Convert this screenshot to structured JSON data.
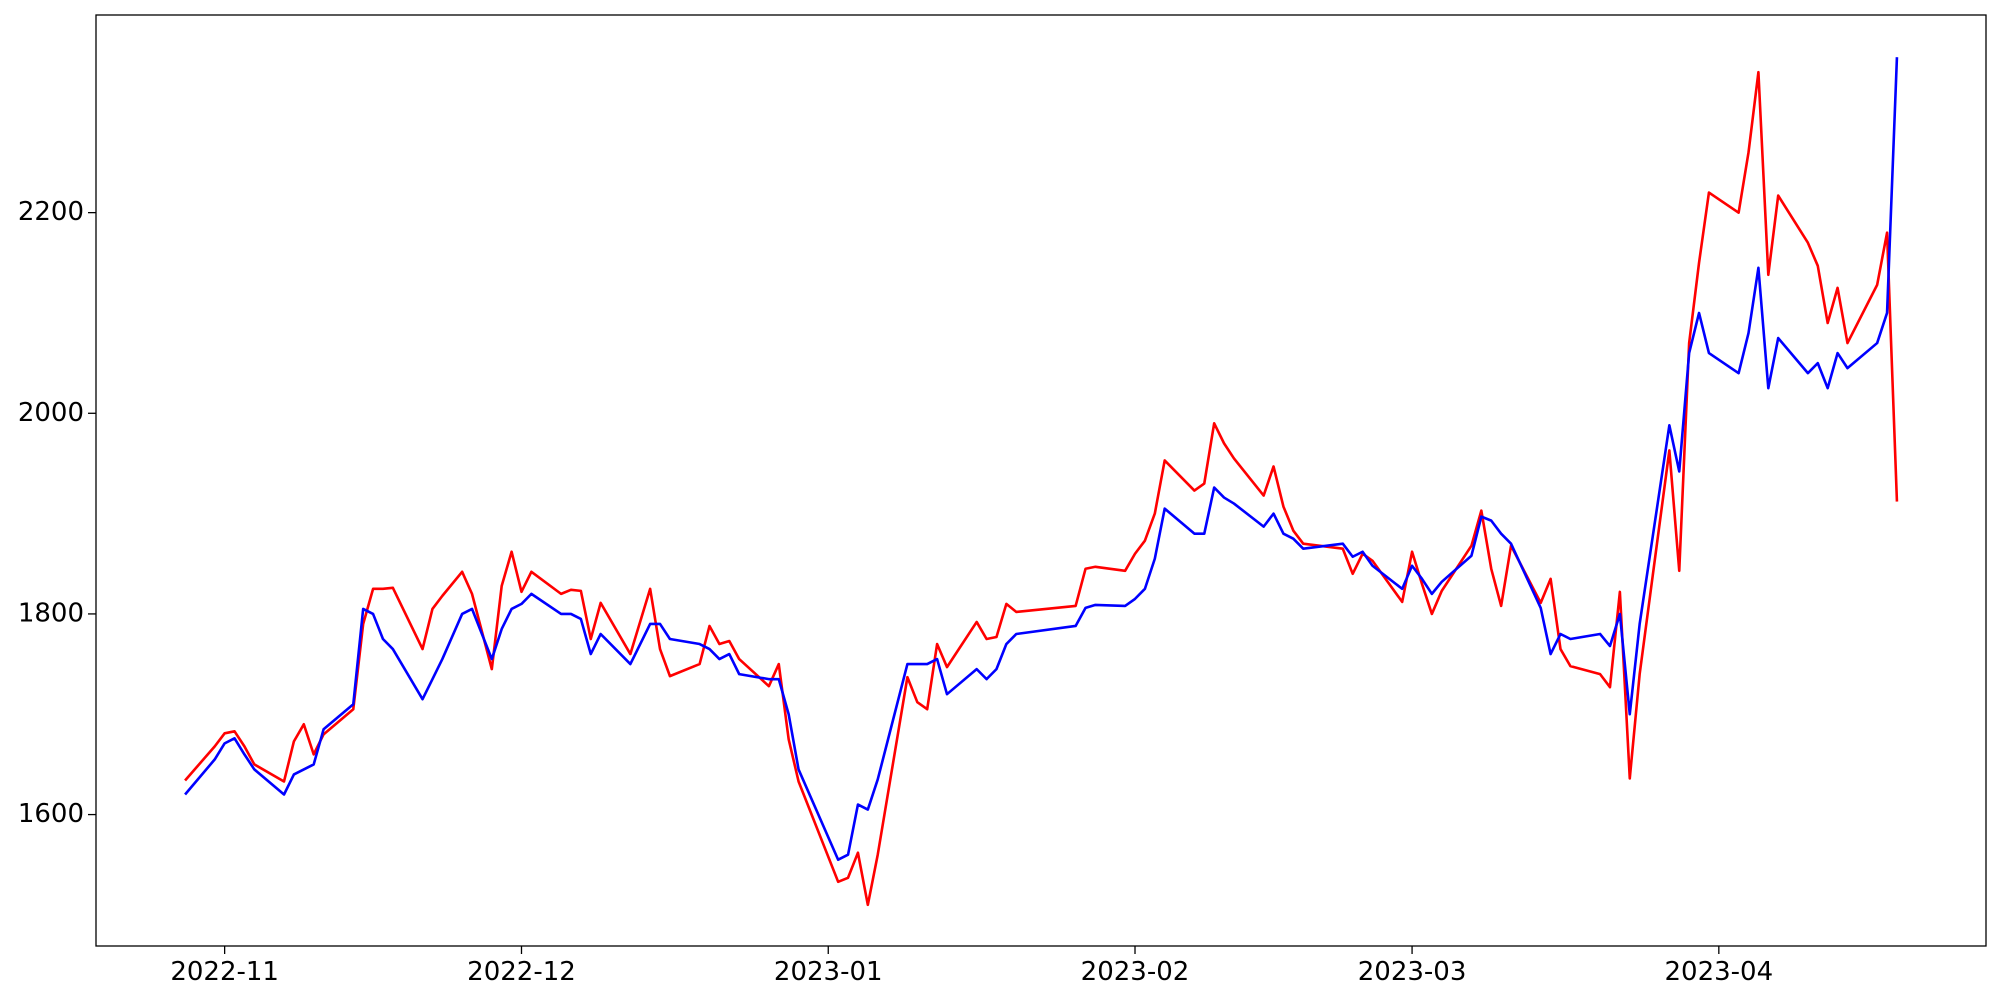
{
  "chart_data": {
    "type": "line",
    "x": [
      19293,
      19296,
      19297,
      19298,
      19299,
      19300,
      19303,
      19304,
      19305,
      19306,
      19307,
      19310,
      19311,
      19312,
      19313,
      19314,
      19317,
      19318,
      19319,
      19321,
      19322,
      19324,
      19325,
      19326,
      19327,
      19328,
      19331,
      19332,
      19333,
      19334,
      19335,
      19338,
      19340,
      19341,
      19342,
      19345,
      19346,
      19347,
      19348,
      19349,
      19352,
      19353,
      19354,
      19355,
      19359,
      19360,
      19361,
      19362,
      19363,
      19366,
      19367,
      19368,
      19369,
      19370,
      19373,
      19374,
      19375,
      19376,
      19377,
      19383,
      19384,
      19385,
      19388,
      19389,
      19390,
      19391,
      19392,
      19395,
      19396,
      19397,
      19398,
      19399,
      19402,
      19403,
      19404,
      19405,
      19406,
      19410,
      19411,
      19412,
      19413,
      19416,
      19417,
      19418,
      19419,
      19420,
      19423,
      19424,
      19425,
      19426,
      19427,
      19430,
      19431,
      19432,
      19433,
      19436,
      19437,
      19438,
      19439,
      19440,
      19443,
      19444,
      19445,
      19446,
      19447,
      19450,
      19451,
      19452,
      19453,
      19454,
      19457,
      19458,
      19459,
      19460,
      19461,
      19464,
      19465,
      19466
    ],
    "series": [
      {
        "color": "#ff0000",
        "values": [
          1634,
          1668,
          1681,
          1683,
          1668,
          1650,
          1633,
          1673,
          1690,
          1660,
          1680,
          1705,
          1790,
          1825,
          1825,
          1826,
          1765,
          1805,
          1818,
          1842,
          1820,
          1745,
          1828,
          1862,
          1822,
          1842,
          1820,
          1824,
          1823,
          1775,
          1811,
          1760,
          1825,
          1765,
          1738,
          1750,
          1788,
          1770,
          1773,
          1755,
          1728,
          1750,
          1675,
          1633,
          1533,
          1537,
          1562,
          1510,
          1560,
          1737,
          1712,
          1705,
          1770,
          1747,
          1792,
          1775,
          1777,
          1810,
          1802,
          1808,
          1845,
          1847,
          1843,
          1860,
          1873,
          1900,
          1953,
          1923,
          1930,
          1990,
          1970,
          1955,
          1918,
          1947,
          1907,
          1883,
          1870,
          1865,
          1840,
          1860,
          1853,
          1812,
          1862,
          1830,
          1800,
          1823,
          1868,
          1903,
          1845,
          1808,
          1868,
          1811,
          1835,
          1765,
          1748,
          1740,
          1727,
          1822,
          1636,
          1740,
          1963,
          1843,
          2070,
          2150,
          2220,
          2200,
          2260,
          2340,
          2138,
          2217,
          2170,
          2147,
          2090,
          2125,
          2070,
          2128,
          2180,
          1912
        ]
      },
      {
        "color": "#0000ff",
        "values": [
          1620,
          1655,
          1671,
          1676,
          1660,
          1645,
          1620,
          1640,
          1645,
          1650,
          1685,
          1710,
          1805,
          1800,
          1775,
          1765,
          1715,
          1735,
          1755,
          1800,
          1805,
          1755,
          1785,
          1805,
          1810,
          1820,
          1800,
          1800,
          1795,
          1760,
          1780,
          1750,
          1790,
          1790,
          1775,
          1770,
          1765,
          1755,
          1760,
          1740,
          1735,
          1735,
          1700,
          1645,
          1555,
          1560,
          1610,
          1605,
          1635,
          1750,
          1750,
          1750,
          1755,
          1720,
          1745,
          1735,
          1745,
          1770,
          1780,
          1788,
          1806,
          1809,
          1808,
          1815,
          1825,
          1855,
          1905,
          1880,
          1880,
          1926,
          1916,
          1910,
          1887,
          1900,
          1880,
          1875,
          1865,
          1870,
          1857,
          1862,
          1848,
          1825,
          1848,
          1835,
          1820,
          1832,
          1858,
          1897,
          1893,
          1880,
          1870,
          1806,
          1760,
          1780,
          1775,
          1780,
          1768,
          1800,
          1700,
          1790,
          1988,
          1942,
          2060,
          2100,
          2060,
          2040,
          2080,
          2145,
          2025,
          2075,
          2040,
          2050,
          2025,
          2060,
          2045,
          2070,
          2100,
          2355
        ]
      }
    ],
    "xlim": [
      19284,
      19475
    ],
    "xticks": [
      {
        "value": 19297,
        "label": "2022-11"
      },
      {
        "value": 19327,
        "label": "2022-12"
      },
      {
        "value": 19358,
        "label": "2023-01"
      },
      {
        "value": 19389,
        "label": "2023-02"
      },
      {
        "value": 19417,
        "label": "2023-03"
      },
      {
        "value": 19448,
        "label": "2023-04"
      }
    ],
    "ylim": [
      1469,
      2397
    ],
    "yticks": [
      1600,
      1800,
      2000,
      2200
    ]
  }
}
